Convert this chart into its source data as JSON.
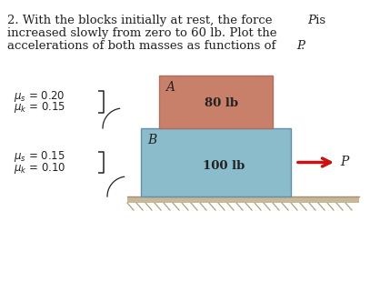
{
  "bg_color": "#ffffff",
  "block_A_color": "#c8806a",
  "block_A_edge": "#b07060",
  "block_B_color": "#8abccc",
  "block_B_edge": "#6090aa",
  "block_A_label": "A",
  "block_A_weight": "80 lb",
  "block_B_label": "B",
  "block_B_weight": "100 lb",
  "arrow_label": "P",
  "arrow_color": "#cc1111",
  "mu_s_A": "0.20",
  "mu_k_A": "0.15",
  "mu_s_B": "0.15",
  "mu_k_B": "0.10",
  "ground_top_color": "#c8b89a",
  "ground_line_color": "#a09070",
  "hatch_color": "#b0a080",
  "text_color": "#222222",
  "title_fontsize": 9.5,
  "label_fontsize": 9.5,
  "mu_fontsize": 8.5,
  "block_label_fontsize": 10,
  "weight_fontsize": 9.5,
  "p_label_fontsize": 10
}
